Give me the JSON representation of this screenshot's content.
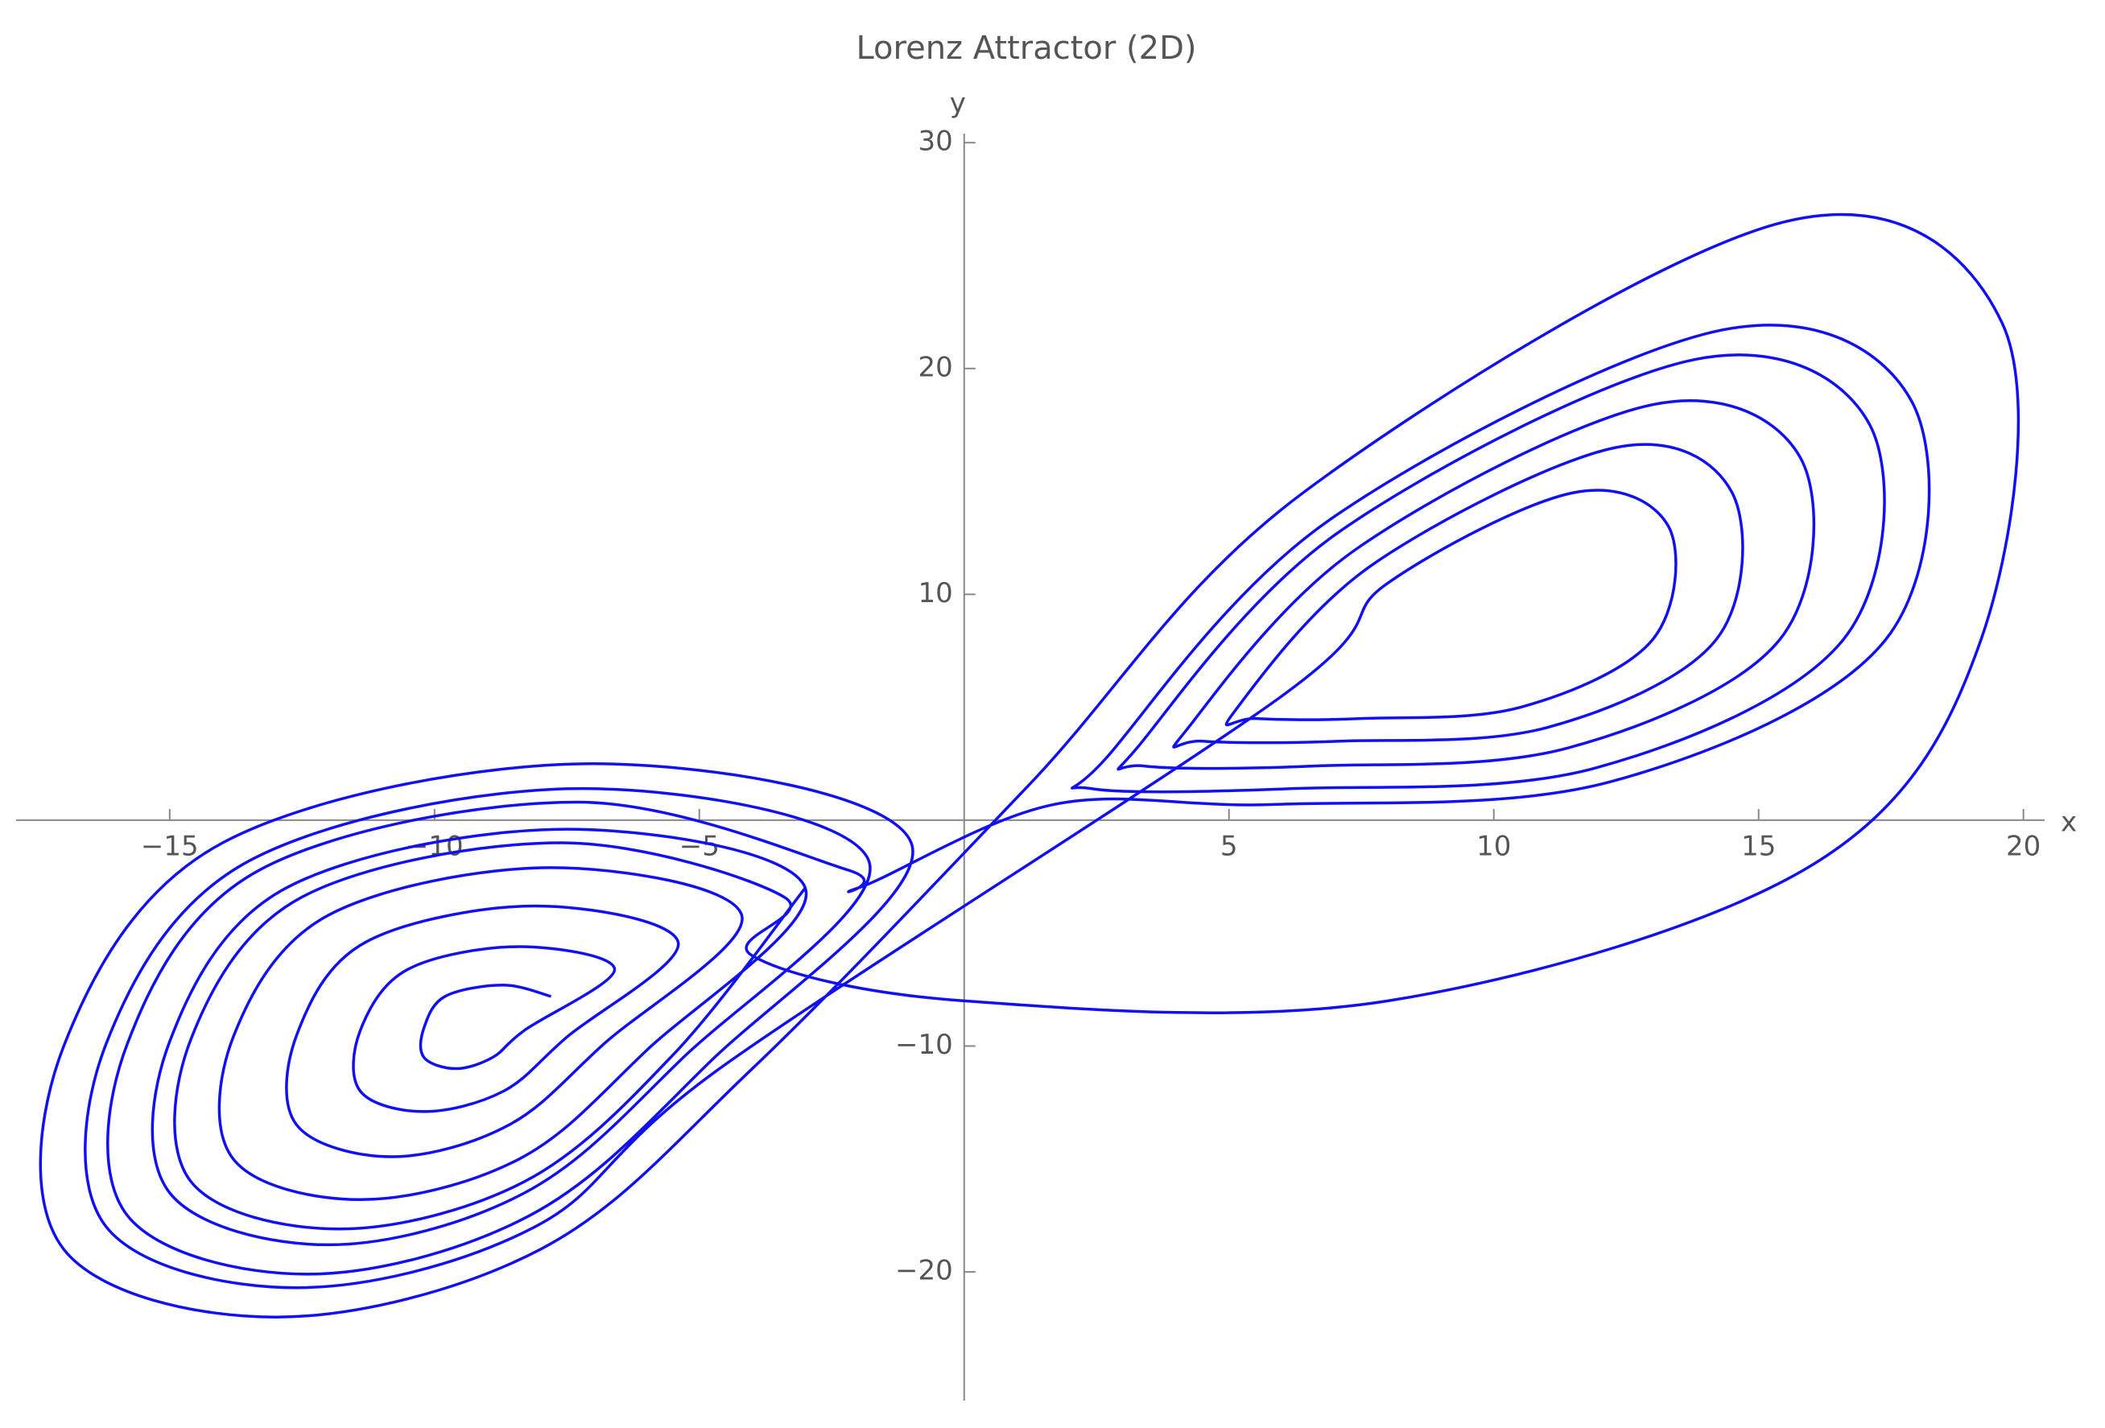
{
  "chart_data": {
    "type": "line",
    "title": "Lorenz Attractor (2D)",
    "x_label": "x",
    "y_label": "y",
    "xlim": [
      -17.9,
      20.4
    ],
    "ylim": [
      -25.7,
      30.4
    ],
    "xticks": [
      {
        "value": -15,
        "label": "−15"
      },
      {
        "value": -10,
        "label": "−10"
      },
      {
        "value": -5,
        "label": "−5"
      },
      5,
      10,
      15,
      20
    ],
    "yticks": [
      {
        "value": -20,
        "label": "−20"
      },
      {
        "value": -10,
        "label": "−10"
      },
      10,
      20,
      30
    ],
    "series": [
      {
        "color": "#1010f0",
        "x": [
          -7.8,
          -8.7,
          -9.8,
          -10.2,
          -10.2,
          -9.6,
          -8.9,
          -8.3,
          -6.6,
          -8.4,
          -10.5,
          -11.4,
          -11.4,
          -10.2,
          -8.7,
          -7.5,
          -5.4,
          -8.1,
          -11.3,
          -12.6,
          -12.6,
          -10.8,
          -8.6,
          -6.8,
          -4.2,
          -7.8,
          -12,
          -13.8,
          -13.8,
          -11.4,
          -8.4,
          -6,
          -3,
          -7.5,
          -12.8,
          -15,
          -15,
          -12,
          -8.3,
          -5.3,
          -1.8,
          -7.2,
          -13.5,
          -16.2,
          -16.2,
          -12.6,
          -8.1,
          -4.5,
          6,
          8,
          11.5,
          13.3,
          13,
          10.5,
          7.5,
          5.5,
          5.1,
          7.7,
          12.3,
          14.5,
          14.2,
          11,
          7.1,
          4.5,
          4.2,
          7.4,
          13,
          15.8,
          15.4,
          11.4,
          6.6,
          3.4,
          3.3,
          7.1,
          13.8,
          17.1,
          16.6,
          11.9,
          6.2,
          2.4,
          2.7,
          6.9,
          14.3,
          17.9,
          17.4,
          12.2,
          5.9,
          1.7,
          -2,
          -2.2,
          -7.3,
          -13.3,
          -15.8,
          -15.8,
          -12.4,
          -8.2,
          -4.8,
          -1,
          -7,
          -14,
          -17,
          -17,
          -13,
          -8,
          -4,
          1.2,
          6.4,
          15.5,
          19.6,
          19.2,
          16,
          8,
          0,
          -4,
          -3.4,
          -7.6,
          -12.5,
          -14.6,
          -14.6,
          -11.8,
          -8.3,
          -5.5,
          -3
        ],
        "values": [
          -7.8,
          -7.3,
          -7.8,
          -9.2,
          -10.5,
          -11,
          -10.5,
          -9.3,
          -6.6,
          -5.6,
          -6.6,
          -9.3,
          -12,
          -12.9,
          -12,
          -9.6,
          -5.4,
          -3.8,
          -5.4,
          -9.5,
          -13.5,
          -14.9,
          -13.5,
          -9.9,
          -4.2,
          -2.1,
          -4.2,
          -9.6,
          -15,
          -16.8,
          -15,
          -10.2,
          -3,
          -0.4,
          -3,
          -9.8,
          -16.5,
          -18.8,
          -16.5,
          -10.5,
          -1.8,
          1.4,
          -1.8,
          -9.9,
          -18,
          -20.7,
          -18,
          -10.8,
          5.5,
          10.5,
          14.5,
          13,
          8,
          5,
          4.5,
          4.5,
          4.8,
          11.3,
          16.5,
          14.5,
          8,
          4.1,
          3.5,
          3.5,
          4,
          12,
          18.4,
          16,
          8,
          3.2,
          2.4,
          2.4,
          3.3,
          12.8,
          20.4,
          17.5,
          8,
          2.3,
          1.4,
          1.4,
          2.8,
          13.3,
          21.7,
          18.5,
          8,
          1.7,
          0.7,
          0.7,
          -3,
          -2.2,
          0.8,
          -2.2,
          -9.9,
          -17.5,
          -20.1,
          -17.5,
          -10.7,
          -1,
          2.5,
          -1,
          -10,
          -19,
          -22,
          -19,
          -11,
          1.5,
          14.5,
          26.5,
          22,
          8,
          -2,
          -8,
          -8,
          -6,
          -3.4,
          -1,
          -3.4,
          -9.7,
          -16,
          -18.1,
          -16,
          -10.4,
          -3
        ]
      }
    ]
  }
}
